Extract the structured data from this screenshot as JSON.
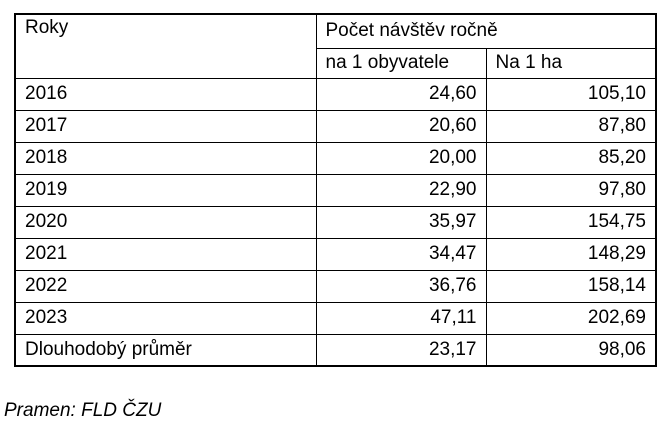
{
  "table": {
    "header": {
      "years_label": "Roky",
      "group_label": "Počet návštěv ročně",
      "per_capita_label": "na 1 obyvatele",
      "per_ha_label": "Na 1 ha"
    },
    "rows": [
      {
        "label": "2016",
        "per_capita": "24,60",
        "per_ha": "105,10"
      },
      {
        "label": "2017",
        "per_capita": "20,60",
        "per_ha": "87,80"
      },
      {
        "label": "2018",
        "per_capita": "20,00",
        "per_ha": "85,20"
      },
      {
        "label": "2019",
        "per_capita": "22,90",
        "per_ha": "97,80"
      },
      {
        "label": "2020",
        "per_capita": "35,97",
        "per_ha": "154,75"
      },
      {
        "label": "2021",
        "per_capita": "34,47",
        "per_ha": "148,29"
      },
      {
        "label": "2022",
        "per_capita": "36,76",
        "per_ha": "158,14"
      },
      {
        "label": "2023",
        "per_capita": "47,11",
        "per_ha": "202,69"
      },
      {
        "label": "Dlouhodobý průměr",
        "per_capita": "23,17",
        "per_ha": "98,06"
      }
    ]
  },
  "footer": {
    "source": "Pramen: FLD ČZU"
  },
  "colors": {
    "border": "#000000",
    "text": "#000000",
    "background": "#ffffff"
  },
  "chart_data": {
    "type": "table",
    "title": "Počet návštěv ročně",
    "columns": [
      "Roky",
      "na 1 obyvatele",
      "Na 1 ha"
    ],
    "rows": [
      [
        "2016",
        24.6,
        105.1
      ],
      [
        "2017",
        20.6,
        87.8
      ],
      [
        "2018",
        20.0,
        85.2
      ],
      [
        "2019",
        22.9,
        97.8
      ],
      [
        "2020",
        35.97,
        154.75
      ],
      [
        "2021",
        34.47,
        148.29
      ],
      [
        "2022",
        36.76,
        158.14
      ],
      [
        "2023",
        47.11,
        202.69
      ],
      [
        "Dlouhodobý průměr",
        23.17,
        98.06
      ]
    ],
    "number_format": "decimal-comma",
    "source": "Pramen: FLD ČZU"
  }
}
